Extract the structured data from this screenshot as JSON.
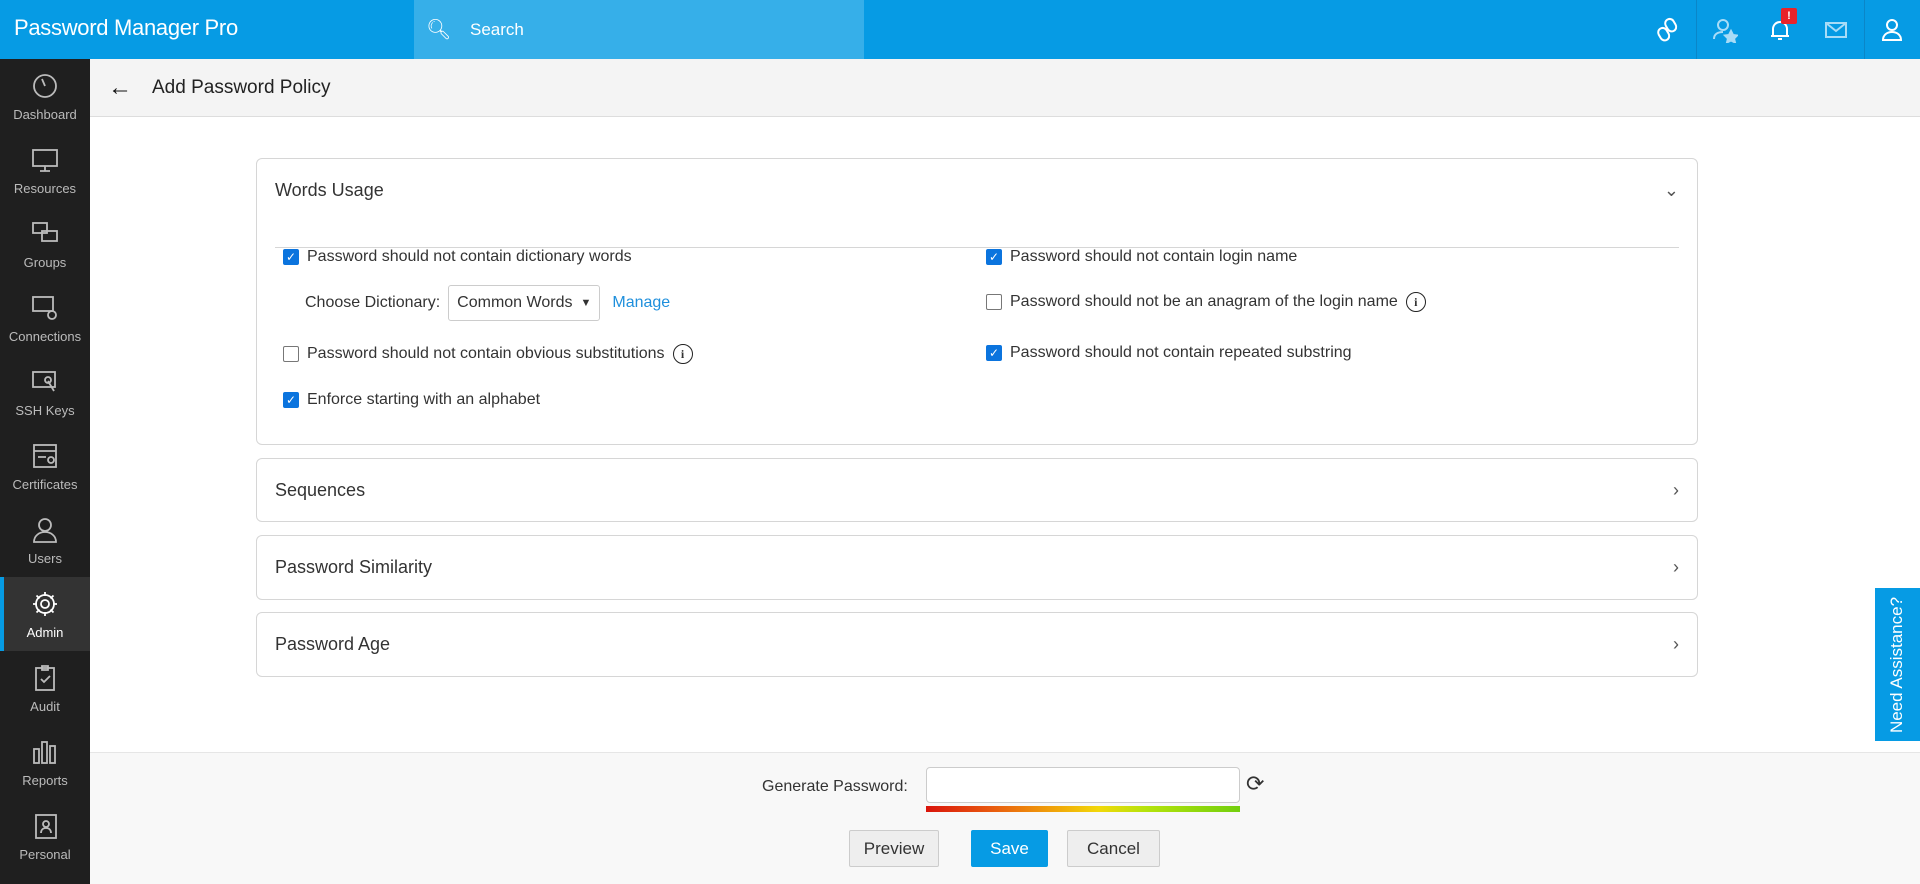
{
  "app": {
    "title": "Password Manager Pro"
  },
  "search": {
    "placeholder": "Search"
  },
  "topbar": {
    "icons": [
      "link-icon",
      "user-star-icon",
      "bell-icon",
      "mail-icon",
      "user-icon"
    ],
    "alert_badge": "!"
  },
  "sidebar": {
    "items": [
      {
        "label": "Dashboard",
        "icon": "dashboard-icon"
      },
      {
        "label": "Resources",
        "icon": "monitor-icon"
      },
      {
        "label": "Groups",
        "icon": "groups-icon"
      },
      {
        "label": "Connections",
        "icon": "connections-icon"
      },
      {
        "label": "SSH Keys",
        "icon": "ssh-key-icon"
      },
      {
        "label": "Certificates",
        "icon": "certificate-icon"
      },
      {
        "label": "Users",
        "icon": "user-icon"
      },
      {
        "label": "Admin",
        "icon": "gear-icon",
        "active": true
      },
      {
        "label": "Audit",
        "icon": "clipboard-icon"
      },
      {
        "label": "Reports",
        "icon": "bar-chart-icon"
      },
      {
        "label": "Personal",
        "icon": "contact-icon"
      }
    ]
  },
  "page": {
    "title": "Add Password Policy"
  },
  "sections": {
    "words": {
      "title": "Words Usage",
      "expanded": true,
      "dict_words": {
        "label": "Password should not contain dictionary words",
        "checked": true
      },
      "choose_dict_label": "Choose Dictionary:",
      "dict_value": "Common Words",
      "manage": "Manage",
      "substitutions": {
        "label": "Password should not contain obvious substitutions",
        "checked": false
      },
      "alphabet": {
        "label": "Enforce starting with an alphabet",
        "checked": true
      },
      "login_name": {
        "label": "Password should not contain login name",
        "checked": true
      },
      "anagram": {
        "label": "Password should not be an anagram of the login name",
        "checked": false
      },
      "repeated": {
        "label": "Password should not contain repeated substring",
        "checked": true
      }
    },
    "sequences": {
      "title": "Sequences"
    },
    "similarity": {
      "title": "Password Similarity"
    },
    "age": {
      "title": "Password Age"
    }
  },
  "footer": {
    "generate_label": "Generate Password:",
    "generate_value": "",
    "preview": "Preview",
    "save": "Save",
    "cancel": "Cancel"
  },
  "assist": {
    "label": "Need Assistance?"
  },
  "colors": {
    "brand": "#069be4",
    "sidebar": "#1f1f1f",
    "checkbox": "#0b74de"
  }
}
